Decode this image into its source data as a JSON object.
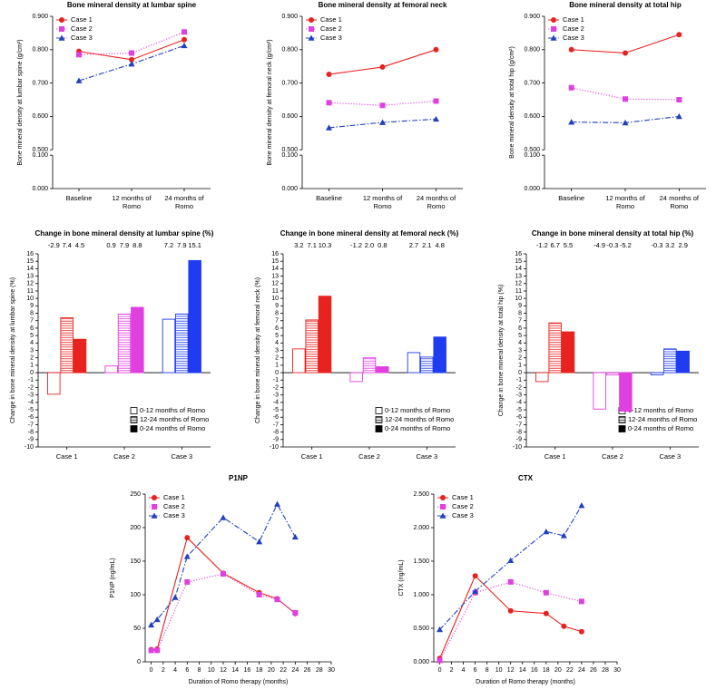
{
  "chart_data": [
    {
      "type": "line",
      "title": "Bone mineral density at lumbar spine",
      "y_label": "Bone mineral density at lumbar spine (g/cm²)",
      "categories": [
        "Baseline",
        "12 months of Romo",
        "24 months of Romo"
      ],
      "ylim": [
        0,
        0.9
      ],
      "y_break": [
        0.1,
        0.5
      ],
      "yticks": [
        {
          "value": 0,
          "label": "0.000"
        },
        {
          "value": 0.1,
          "label": "0.100"
        },
        {
          "value": 0.5,
          "label": "0.500"
        },
        {
          "value": 0.6,
          "label": "0.600"
        },
        {
          "value": 0.7,
          "label": "0.700"
        },
        {
          "value": 0.8,
          "label": "0.800"
        },
        {
          "value": 0.9,
          "label": "0.900"
        }
      ],
      "legend": "top-left",
      "series": [
        {
          "name": "Case 1",
          "color": "#e8231f",
          "marker": "circle",
          "dash": "solid",
          "values": [
            0.795,
            0.77,
            0.83
          ]
        },
        {
          "name": "Case 2",
          "color": "#e040e0",
          "marker": "square",
          "dash": "dotted",
          "values": [
            0.785,
            0.79,
            0.853
          ]
        },
        {
          "name": "Case 3",
          "color": "#2040c0",
          "marker": "triangle",
          "dash": "dashdot",
          "values": [
            0.707,
            0.757,
            0.812
          ]
        }
      ]
    },
    {
      "type": "line",
      "title": "Bone mineral density at femoral neck",
      "y_label": "Bone mineral density at femoral neck (g/cm²)",
      "categories": [
        "Baseline",
        "12 months of Romo",
        "24 months of Romo"
      ],
      "ylim": [
        0,
        0.9
      ],
      "y_break": [
        0.1,
        0.5
      ],
      "yticks": [
        {
          "value": 0,
          "label": "0.000"
        },
        {
          "value": 0.1,
          "label": "0.100"
        },
        {
          "value": 0.5,
          "label": "0.500"
        },
        {
          "value": 0.6,
          "label": "0.600"
        },
        {
          "value": 0.7,
          "label": "0.700"
        },
        {
          "value": 0.8,
          "label": "0.800"
        },
        {
          "value": 0.9,
          "label": "0.900"
        }
      ],
      "legend": "top-left",
      "series": [
        {
          "name": "Case 1",
          "color": "#e8231f",
          "marker": "circle",
          "dash": "solid",
          "values": [
            0.726,
            0.748,
            0.8
          ]
        },
        {
          "name": "Case 2",
          "color": "#e040e0",
          "marker": "square",
          "dash": "dotted",
          "values": [
            0.641,
            0.633,
            0.646
          ]
        },
        {
          "name": "Case 3",
          "color": "#2040c0",
          "marker": "triangle",
          "dash": "dashdot",
          "values": [
            0.566,
            0.582,
            0.592
          ]
        }
      ]
    },
    {
      "type": "line",
      "title": "Bone mineral density at total hip",
      "y_label": "Bone mineral density at total hip (g/cm²)",
      "categories": [
        "Baseline",
        "12 months of Romo",
        "24 months of Romo"
      ],
      "ylim": [
        0,
        0.9
      ],
      "y_break": [
        0.1,
        0.5
      ],
      "yticks": [
        {
          "value": 0,
          "label": "0.000"
        },
        {
          "value": 0.1,
          "label": "0.100"
        },
        {
          "value": 0.5,
          "label": "0.500"
        },
        {
          "value": 0.6,
          "label": "0.600"
        },
        {
          "value": 0.7,
          "label": "0.700"
        },
        {
          "value": 0.8,
          "label": "0.800"
        },
        {
          "value": 0.9,
          "label": "0.900"
        }
      ],
      "legend": "top-left",
      "series": [
        {
          "name": "Case 1",
          "color": "#e8231f",
          "marker": "circle",
          "dash": "solid",
          "values": [
            0.8,
            0.79,
            0.845
          ]
        },
        {
          "name": "Case 2",
          "color": "#e040e0",
          "marker": "square",
          "dash": "dotted",
          "values": [
            0.686,
            0.652,
            0.65
          ]
        },
        {
          "name": "Case 3",
          "color": "#2040c0",
          "marker": "triangle",
          "dash": "dashdot",
          "values": [
            0.583,
            0.581,
            0.6
          ]
        }
      ]
    },
    {
      "type": "bar",
      "title": "Change in bone mineral density at lumbar spine (%)",
      "y_label": "Change in bone mineral density at lumbar spine (%)",
      "categories": [
        "Case 1",
        "Case 2",
        "Case 3"
      ],
      "category_colors": [
        "#e8231f",
        "#e040e0",
        "#1f3cf0"
      ],
      "ylim": [
        -10,
        16
      ],
      "yticks": [
        16,
        15,
        14,
        13,
        12,
        11,
        10,
        9,
        8,
        7,
        6,
        5,
        4,
        3,
        2,
        1,
        0,
        -1,
        -2,
        -3,
        -4,
        -5,
        -6,
        -7,
        -8,
        -9,
        -10
      ],
      "legend": "bottom-right",
      "series": [
        {
          "name": "0-12 months of Romo",
          "fill": "open",
          "values": [
            -2.9,
            0.9,
            7.2
          ],
          "value_labels": [
            "-2.9",
            "0.9",
            "7.2"
          ]
        },
        {
          "name": "12-24 months of Romo",
          "fill": "hatched",
          "values": [
            7.4,
            7.9,
            7.9
          ],
          "value_labels": [
            "7.4",
            "7.9",
            "7.9"
          ]
        },
        {
          "name": "0-24 months of Romo",
          "fill": "solid",
          "values": [
            4.5,
            8.8,
            15.1
          ],
          "value_labels": [
            "4.5",
            "8.8",
            "15.1"
          ]
        }
      ]
    },
    {
      "type": "bar",
      "title": "Change in bone mineral density at femoral neck (%)",
      "y_label": "Change in bone mineral density at femoral neck (%)",
      "categories": [
        "Case 1",
        "Case 2",
        "Case 3"
      ],
      "category_colors": [
        "#e8231f",
        "#e040e0",
        "#1f3cf0"
      ],
      "ylim": [
        -10,
        16
      ],
      "yticks": [
        16,
        15,
        14,
        13,
        12,
        11,
        10,
        9,
        8,
        7,
        6,
        5,
        4,
        3,
        2,
        1,
        0,
        -1,
        -2,
        -3,
        -4,
        -5,
        -6,
        -7,
        -8,
        -9,
        -10
      ],
      "legend": "bottom-right",
      "series": [
        {
          "name": "0-12 months of Romo",
          "fill": "open",
          "values": [
            3.2,
            -1.2,
            2.7
          ],
          "value_labels": [
            "3.2",
            "-1.2",
            "2.7"
          ]
        },
        {
          "name": "12-24 months of Romo",
          "fill": "hatched",
          "values": [
            7.1,
            2.0,
            2.1
          ],
          "value_labels": [
            "7.1",
            "2.0",
            "2.1"
          ]
        },
        {
          "name": "0-24 months of Romo",
          "fill": "solid",
          "values": [
            10.3,
            0.8,
            4.8
          ],
          "value_labels": [
            "10.3",
            "0.8",
            "4.8"
          ]
        }
      ]
    },
    {
      "type": "bar",
      "title": "Change in bone mineral density at total hip (%)",
      "y_label": "Change in bone mineral density at total hip (%)",
      "categories": [
        "Case 1",
        "Case 2",
        "Case 3"
      ],
      "category_colors": [
        "#e8231f",
        "#e040e0",
        "#1f3cf0"
      ],
      "ylim": [
        -10,
        16
      ],
      "yticks": [
        16,
        15,
        14,
        13,
        12,
        11,
        10,
        9,
        8,
        7,
        6,
        5,
        4,
        3,
        2,
        1,
        0,
        -1,
        -2,
        -3,
        -4,
        -5,
        -6,
        -7,
        -8,
        -9,
        -10
      ],
      "legend": "bottom-right",
      "series": [
        {
          "name": "0-12 months of Romo",
          "fill": "open",
          "values": [
            -1.2,
            -4.9,
            -0.3
          ],
          "value_labels": [
            "-1.2",
            "-4.9",
            "-0.3"
          ]
        },
        {
          "name": "12-24 months of Romo",
          "fill": "hatched",
          "values": [
            6.7,
            -0.3,
            3.2
          ],
          "value_labels": [
            "6.7",
            "-0.3",
            "3.2"
          ]
        },
        {
          "name": "0-24 months of Romo",
          "fill": "solid",
          "values": [
            5.5,
            -5.2,
            2.9
          ],
          "value_labels": [
            "5.5",
            "-5.2",
            "2.9"
          ]
        }
      ]
    },
    {
      "type": "line",
      "title": "P1NP",
      "x_label": "Duration of Romo therapy (months)",
      "y_label": "P1NP (ng/mL)",
      "xlim": [
        -1,
        30
      ],
      "xticks": [
        0,
        2,
        4,
        6,
        8,
        10,
        12,
        14,
        16,
        18,
        20,
        22,
        24,
        26,
        28,
        30
      ],
      "ylim": [
        0,
        250
      ],
      "yticks": [
        0,
        50,
        100,
        150,
        200,
        250
      ],
      "legend": "top-left",
      "series": [
        {
          "name": "Case 1",
          "color": "#e8231f",
          "marker": "circle",
          "dash": "solid",
          "x": [
            0,
            1,
            6,
            12,
            18,
            21,
            24
          ],
          "values": [
            18,
            19,
            185,
            132,
            103,
            94,
            72
          ]
        },
        {
          "name": "Case 2",
          "color": "#e040e0",
          "marker": "square",
          "dash": "dotted",
          "x": [
            0,
            1,
            6,
            12,
            18,
            21,
            24
          ],
          "values": [
            17,
            17,
            119,
            131,
            100,
            93,
            73
          ]
        },
        {
          "name": "Case 3",
          "color": "#2040c0",
          "marker": "triangle",
          "dash": "dashdot",
          "x": [
            0,
            1,
            4,
            6,
            12,
            18,
            21,
            24
          ],
          "values": [
            55,
            63,
            96,
            157,
            215,
            179,
            235,
            186
          ]
        }
      ]
    },
    {
      "type": "line",
      "title": "CTX",
      "x_label": "Duration of Romo therapy (months)",
      "y_label": "CTX (ng/mL)",
      "xlim": [
        -1,
        30
      ],
      "xticks": [
        0,
        2,
        4,
        6,
        8,
        10,
        12,
        14,
        16,
        18,
        20,
        22,
        24,
        26,
        28,
        30
      ],
      "ylim": [
        0,
        2.5
      ],
      "yticks": [
        {
          "value": 0,
          "label": "0.000"
        },
        {
          "value": 0.5,
          "label": "0.500"
        },
        {
          "value": 1,
          "label": "1.000"
        },
        {
          "value": 1.5,
          "label": "1.500"
        },
        {
          "value": 2,
          "label": "2.000"
        },
        {
          "value": 2.5,
          "label": "2.500"
        }
      ],
      "legend": "top-left",
      "series": [
        {
          "name": "Case 1",
          "color": "#e8231f",
          "marker": "circle",
          "dash": "solid",
          "x": [
            0,
            6,
            12,
            18,
            21,
            24
          ],
          "values": [
            0.05,
            1.28,
            0.76,
            0.72,
            0.53,
            0.45
          ]
        },
        {
          "name": "Case 2",
          "color": "#e040e0",
          "marker": "square",
          "dash": "dotted",
          "x": [
            0,
            6,
            12,
            18,
            24
          ],
          "values": [
            0.02,
            1.03,
            1.19,
            1.03,
            0.9
          ]
        },
        {
          "name": "Case 3",
          "color": "#2040c0",
          "marker": "triangle",
          "dash": "dashdot",
          "x": [
            0,
            6,
            12,
            18,
            21,
            24
          ],
          "values": [
            0.48,
            1.05,
            1.51,
            1.94,
            1.88,
            2.33
          ]
        }
      ]
    }
  ]
}
